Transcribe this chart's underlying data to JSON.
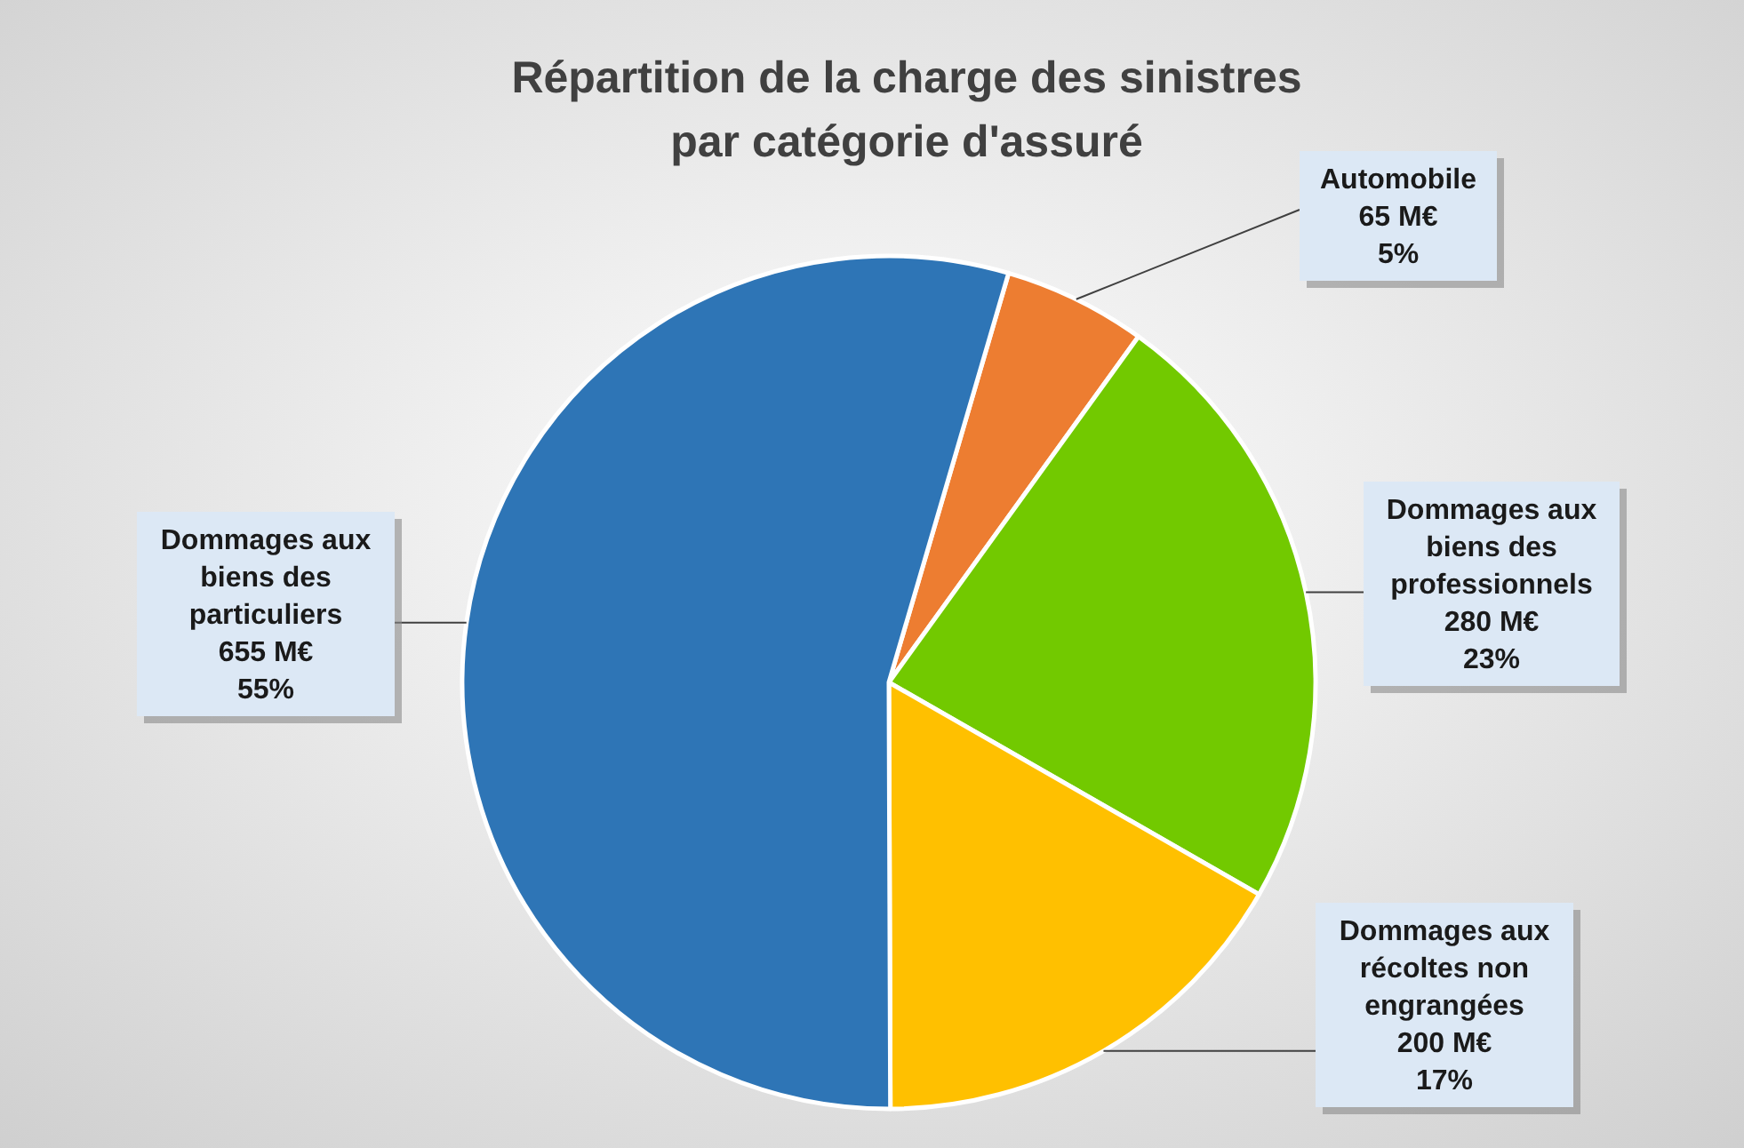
{
  "chart_data": {
    "type": "pie",
    "title": "Répartition de la charge des sinistres\npar catégorie d'assuré",
    "categories": [
      "Automobile",
      "Dommages aux biens des professionnels",
      "Dommages aux récoltes non engrangées",
      "Dommages aux biens des particuliers"
    ],
    "values": [
      65,
      280,
      200,
      655
    ],
    "colors": [
      "#ed7d31",
      "#72c900",
      "#ffc000",
      "#2e75b6"
    ],
    "value_labels": [
      "65 M€\n5%",
      "280 M€\n23%",
      "200 M€\n17%",
      "655 M€\n55%"
    ],
    "data_labels": true
  }
}
